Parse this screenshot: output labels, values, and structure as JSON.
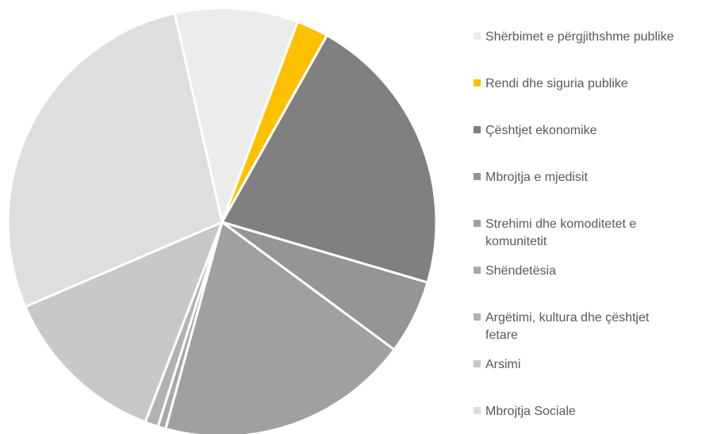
{
  "chart_data": {
    "type": "pie",
    "categories": [
      "Shërbimet e përgjithshme publike",
      "Rendi dhe siguria publike",
      "Çështjet ekonomike",
      "Mbrojtja e mjedisit",
      "Strehimi dhe komoditetet e komunitetit",
      "Shëndetësia",
      "Argëtimi, kultura dhe çështjet fetare",
      "Arsimi",
      "Mbrojtja Sociale"
    ],
    "values": [
      9.3,
      2.4,
      21.4,
      5.6,
      19.1,
      0.6,
      1.0,
      12.7,
      27.9
    ],
    "colors": [
      "#ececec",
      "#ffc000",
      "#808080",
      "#959595",
      "#a0a0a0",
      "#a8a8a8",
      "#b2b2b2",
      "#c8c8c8",
      "#dedede"
    ],
    "legend": "right"
  }
}
